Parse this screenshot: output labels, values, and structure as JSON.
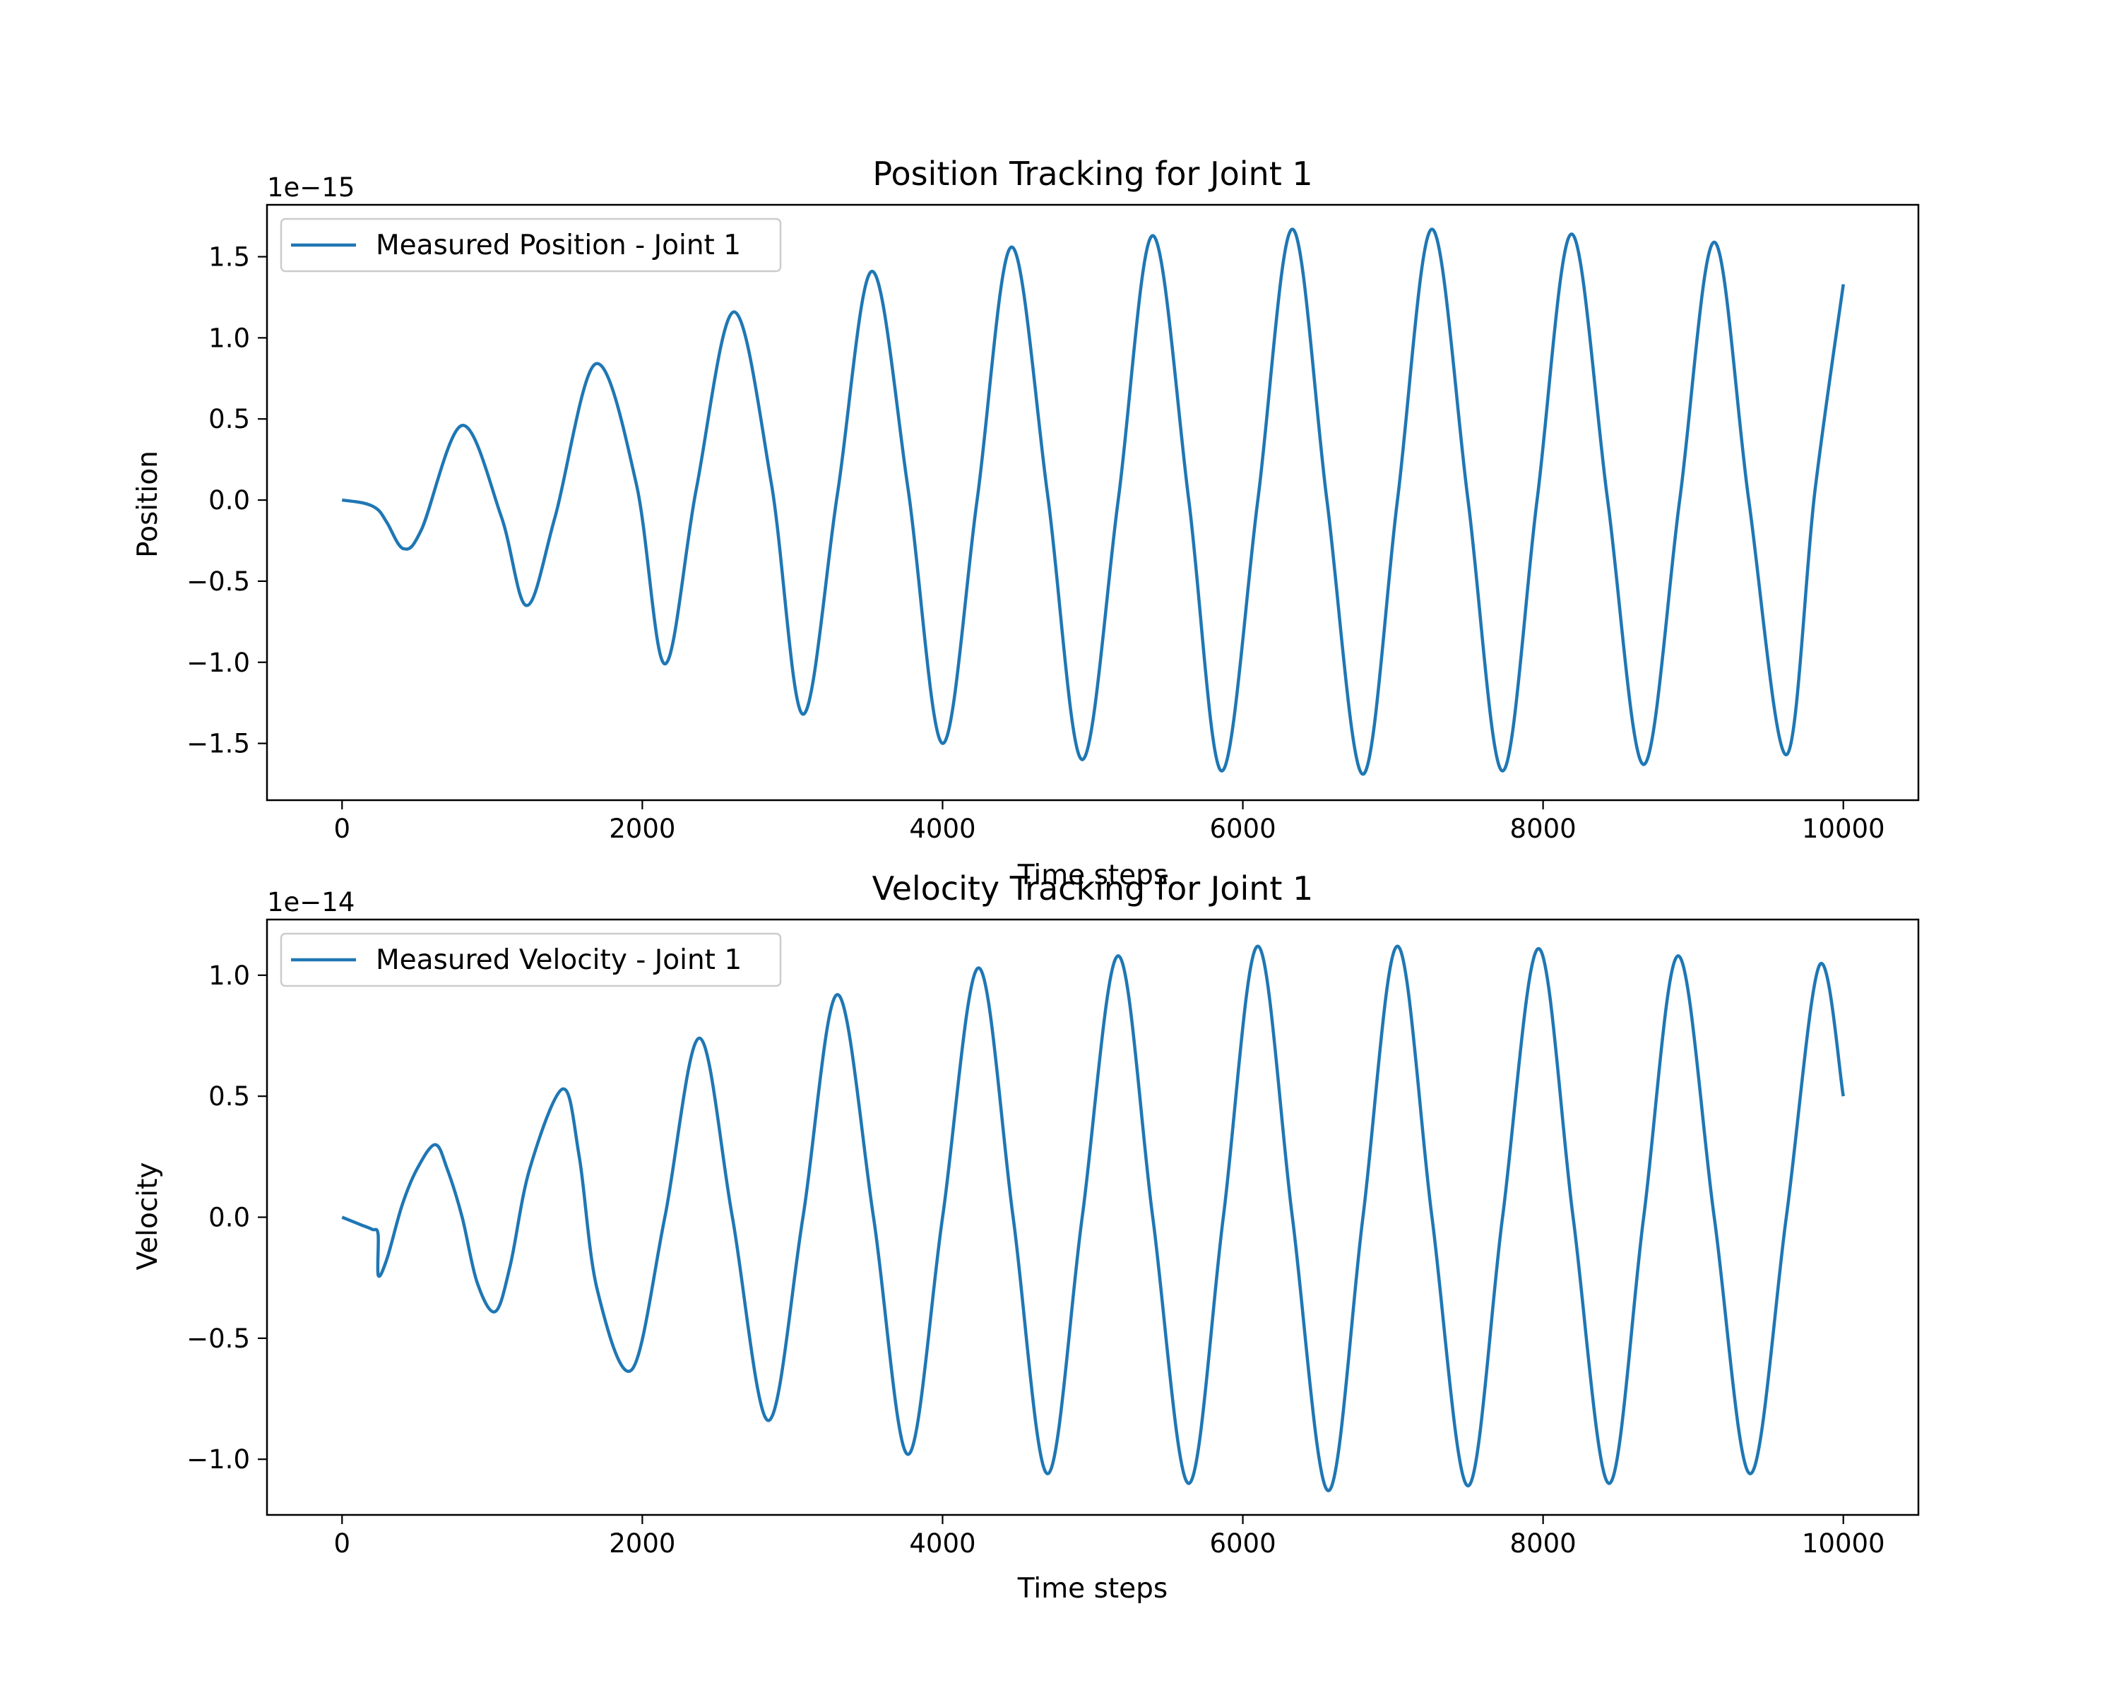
{
  "chart_data": [
    {
      "type": "line",
      "title": "Position Tracking for Joint 1",
      "xlabel": "Time steps",
      "ylabel": "Position",
      "offset_label": "1e−15",
      "scale": 1e-15,
      "xlim": [
        -500,
        10500
      ],
      "ylim": [
        -1.85,
        1.82
      ],
      "xticks": [
        0,
        2000,
        4000,
        6000,
        8000,
        10000
      ],
      "xtick_labels": [
        "0",
        "2000",
        "4000",
        "6000",
        "8000",
        "10000"
      ],
      "yticks": [
        1.5,
        1.0,
        0.5,
        0.0,
        -0.5,
        -1.0,
        -1.5
      ],
      "ytick_labels": [
        "1.5",
        "1.0",
        "0.5",
        "0.0",
        "−0.5",
        "−1.0",
        "−1.5"
      ],
      "grid": false,
      "legend_position": "upper-left",
      "color": "#1f77b4",
      "series": [
        {
          "name": "Measured Position - Joint 1",
          "x": [
            0,
            150,
            240,
            300,
            410,
            530,
            800,
            1060,
            1230,
            1420,
            1690,
            1960,
            2150,
            2360,
            2610,
            2860,
            3070,
            3300,
            3530,
            3770,
            4000,
            4230,
            4460,
            4700,
            4930,
            5170,
            5400,
            5640,
            5860,
            6100,
            6330,
            6560,
            6800,
            7030,
            7260,
            7500,
            7730,
            7960,
            8190,
            8430,
            8670,
            8910,
            9140,
            9370,
            9620,
            9810,
            10000
          ],
          "y": [
            0.0,
            -0.02,
            -0.06,
            -0.14,
            -0.3,
            -0.18,
            0.46,
            -0.1,
            -0.65,
            -0.1,
            0.84,
            0.1,
            -1.01,
            0.07,
            1.16,
            0.1,
            -1.32,
            0.04,
            1.41,
            0.07,
            -1.5,
            0.0,
            1.56,
            0.03,
            -1.6,
            0.0,
            1.63,
            0.0,
            -1.67,
            0.0,
            1.67,
            0.0,
            -1.69,
            0.0,
            1.67,
            0.0,
            -1.67,
            0.0,
            1.64,
            0.0,
            -1.63,
            0.0,
            1.59,
            0.0,
            -1.57,
            0.05,
            1.33
          ]
        }
      ]
    },
    {
      "type": "line",
      "title": "Velocity Tracking for Joint 1",
      "xlabel": "Time steps",
      "ylabel": "Velocity",
      "offset_label": "1e−14",
      "scale": 1e-14,
      "xlim": [
        -500,
        10500
      ],
      "ylim": [
        -1.23,
        1.23
      ],
      "xticks": [
        0,
        2000,
        4000,
        6000,
        8000,
        10000
      ],
      "xtick_labels": [
        "0",
        "2000",
        "4000",
        "6000",
        "8000",
        "10000"
      ],
      "yticks": [
        1.0,
        0.5,
        0.0,
        -0.5,
        -1.0
      ],
      "ytick_labels": [
        "1.0",
        "0.5",
        "0.0",
        "−0.5",
        "−1.0"
      ],
      "grid": false,
      "legend_position": "upper-left",
      "color": "#1f77b4",
      "series": [
        {
          "name": "Measured Velocity - Joint 1",
          "x": [
            0,
            120,
            200,
            240,
            241,
            300,
            400,
            500,
            620,
            700,
            800,
            900,
            1020,
            1120,
            1250,
            1470,
            1580,
            1700,
            1930,
            2150,
            2380,
            2600,
            2840,
            3070,
            3300,
            3540,
            3770,
            4000,
            4240,
            4470,
            4700,
            4930,
            5170,
            5400,
            5640,
            5870,
            6100,
            6330,
            6570,
            6800,
            7030,
            7260,
            7500,
            7730,
            7970,
            8200,
            8440,
            8670,
            8900,
            9140,
            9380,
            9620,
            9840,
            10000
          ],
          "y": [
            0.0,
            -0.03,
            -0.05,
            -0.07,
            -0.24,
            -0.17,
            0.05,
            0.2,
            0.3,
            0.2,
            0.0,
            -0.27,
            -0.39,
            -0.2,
            0.2,
            0.53,
            0.25,
            -0.3,
            -0.63,
            0.0,
            0.74,
            0.0,
            -0.84,
            0.0,
            0.92,
            0.0,
            -0.98,
            0.0,
            1.03,
            0.0,
            -1.06,
            0.0,
            1.08,
            0.0,
            -1.1,
            0.0,
            1.12,
            0.0,
            -1.13,
            0.0,
            1.12,
            0.0,
            -1.11,
            0.0,
            1.11,
            0.0,
            -1.1,
            0.0,
            1.08,
            0.0,
            -1.06,
            0.0,
            1.04,
            0.5
          ]
        }
      ]
    }
  ]
}
